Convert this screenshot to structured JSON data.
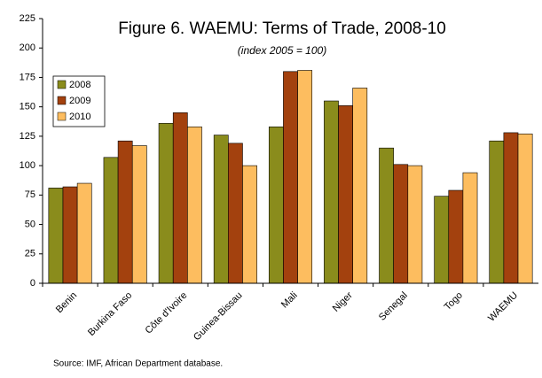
{
  "chart_data": {
    "type": "bar",
    "title": "Figure 6. WAEMU: Terms of Trade, 2008-10",
    "subtitle": "(index 2005 = 100)",
    "source": "Source: IMF, African Department database.",
    "categories": [
      "Benin",
      "Burkina Faso",
      "Côte d'Ivoire",
      "Guinea-Bissau",
      "Mali",
      "Niger",
      "Senegal",
      "Togo",
      "WAEMU"
    ],
    "series": [
      {
        "name": "2008",
        "color": "#8a8c1c",
        "values": [
          81,
          107,
          136,
          126,
          133,
          155,
          115,
          74,
          121
        ]
      },
      {
        "name": "2009",
        "color": "#a3410e",
        "values": [
          82,
          121,
          145,
          119,
          180,
          151,
          101,
          79,
          128
        ]
      },
      {
        "name": "2010",
        "color": "#fdbd5f",
        "values": [
          85,
          117,
          133,
          100,
          181,
          166,
          100,
          94,
          127
        ]
      }
    ],
    "ylim": [
      0,
      225
    ],
    "yticks": [
      0,
      25,
      50,
      75,
      100,
      125,
      150,
      175,
      200,
      225
    ],
    "legend": "upper left",
    "grid": false
  }
}
